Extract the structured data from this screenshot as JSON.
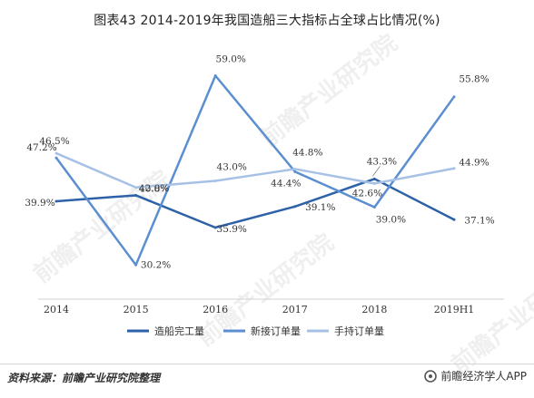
{
  "title": "图表43  2014-2019年我国造船三大指标占全球占比情况(%)",
  "source": "资料来源：前瞻产业研究院整理",
  "brand": "前瞻经济学人APP",
  "watermark": "前瞻产业研究院",
  "chart_data": {
    "type": "line",
    "categories": [
      "2014",
      "2015",
      "2016",
      "2017",
      "2018",
      "2019H1"
    ],
    "ylim": [
      25,
      65
    ],
    "grid": false,
    "legend_position": "bottom",
    "series": [
      {
        "name": "造船完工量",
        "color": "#2e62a8",
        "values": [
          39.9,
          40.8,
          35.9,
          39.1,
          43.3,
          37.1
        ],
        "labels": [
          "39.9%",
          "40.8%",
          "35.9%",
          "39.1%",
          "43.3%",
          "37.1%"
        ]
      },
      {
        "name": "新接订单量",
        "color": "#5b8fd0",
        "values": [
          46.5,
          30.2,
          59.0,
          44.4,
          39.0,
          55.8
        ],
        "labels": [
          "46.5%",
          "30.2%",
          "59.0%",
          "44.4%",
          "39.0%",
          "55.8%"
        ]
      },
      {
        "name": "手持订单量",
        "color": "#a7c1e6",
        "values": [
          47.2,
          42.0,
          43.0,
          44.8,
          42.6,
          44.9
        ],
        "labels": [
          "47.2%",
          "42.0%",
          "43.0%",
          "44.8%",
          "42.6%",
          "44.9%"
        ]
      }
    ]
  }
}
